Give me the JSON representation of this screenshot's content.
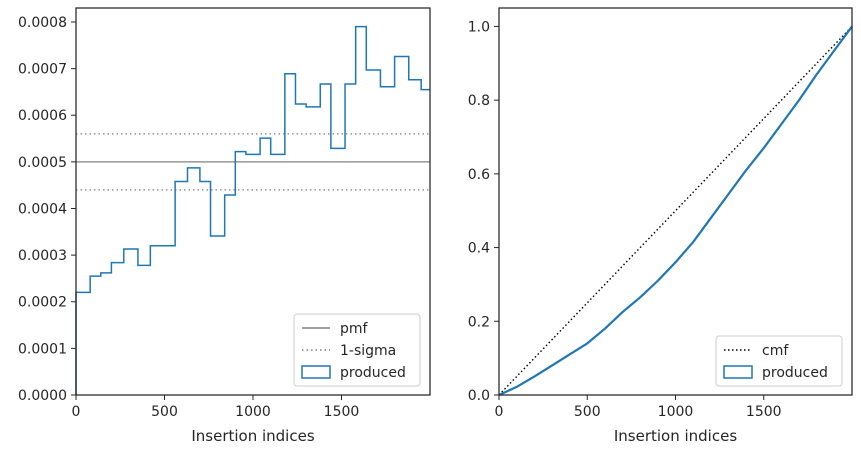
{
  "chart_data": [
    {
      "type": "histogram-step",
      "xlabel": "Insertion indices",
      "ylabel": "",
      "xlim": [
        0,
        2000
      ],
      "ylim": [
        0,
        0.00083
      ],
      "xticks": [
        0,
        500,
        1000,
        1500
      ],
      "xtick_labels": [
        "0",
        "500",
        "1000",
        "1500"
      ],
      "yticks": [
        0,
        0.0001,
        0.0002,
        0.0003,
        0.0004,
        0.0005,
        0.0006,
        0.0007,
        0.0008
      ],
      "ytick_labels": [
        "0.0000",
        "0.0001",
        "0.0002",
        "0.0003",
        "0.0004",
        "0.0005",
        "0.0006",
        "0.0007",
        "0.0008"
      ],
      "legend_position": "lower right",
      "legend": [
        "pmf",
        "1-sigma",
        "produced"
      ],
      "reference_lines": [
        {
          "name": "pmf",
          "y": 0.0005,
          "style": "solid",
          "color": "#808080"
        },
        {
          "name": "1-sigma",
          "y": 0.00056,
          "style": "dotted",
          "color": "#808080"
        },
        {
          "name": "1-sigma",
          "y": 0.00044,
          "style": "dotted",
          "color": "#808080"
        }
      ],
      "series": [
        {
          "name": "produced",
          "color": "#1f77b4",
          "bin_edges": [
            0,
            80,
            140,
            200,
            270,
            350,
            420,
            560,
            630,
            700,
            760,
            840,
            900,
            960,
            1040,
            1100,
            1180,
            1240,
            1300,
            1380,
            1440,
            1520,
            1580,
            1640,
            1720,
            1800,
            1880,
            1950,
            2000
          ],
          "values": [
            0.00022,
            0.000255,
            0.000262,
            0.000284,
            0.000313,
            0.000278,
            0.00032,
            0.000458,
            0.000487,
            0.000458,
            0.000341,
            0.000429,
            0.000522,
            0.000516,
            0.000551,
            0.000516,
            0.000689,
            0.000624,
            0.000618,
            0.000667,
            0.000529,
            0.000667,
            0.00079,
            0.000697,
            0.000661,
            0.000726,
            0.000676,
            0.000655
          ]
        }
      ]
    },
    {
      "type": "line",
      "xlabel": "Insertion indices",
      "ylabel": "",
      "xlim": [
        0,
        2000
      ],
      "ylim": [
        0,
        1.05
      ],
      "xticks": [
        0,
        500,
        1000,
        1500
      ],
      "xtick_labels": [
        "0",
        "500",
        "1000",
        "1500"
      ],
      "yticks": [
        0,
        0.2,
        0.4,
        0.6,
        0.8,
        1.0
      ],
      "ytick_labels": [
        "0.0",
        "0.2",
        "0.4",
        "0.6",
        "0.8",
        "1.0"
      ],
      "legend_position": "lower right",
      "legend": [
        "cmf",
        "produced"
      ],
      "series": [
        {
          "name": "cmf",
          "style": "dotted",
          "color": "#000000",
          "x": [
            0,
            2000
          ],
          "y": [
            0,
            1.0
          ]
        },
        {
          "name": "produced",
          "style": "step",
          "color": "#1f77b4",
          "x": [
            0,
            100,
            200,
            300,
            400,
            500,
            600,
            700,
            800,
            900,
            1000,
            1100,
            1200,
            1300,
            1400,
            1500,
            1600,
            1700,
            1800,
            1900,
            2000
          ],
          "y": [
            0,
            0.022,
            0.05,
            0.08,
            0.11,
            0.14,
            0.18,
            0.225,
            0.265,
            0.31,
            0.36,
            0.415,
            0.48,
            0.545,
            0.61,
            0.67,
            0.735,
            0.8,
            0.87,
            0.935,
            1.0
          ]
        }
      ]
    }
  ]
}
